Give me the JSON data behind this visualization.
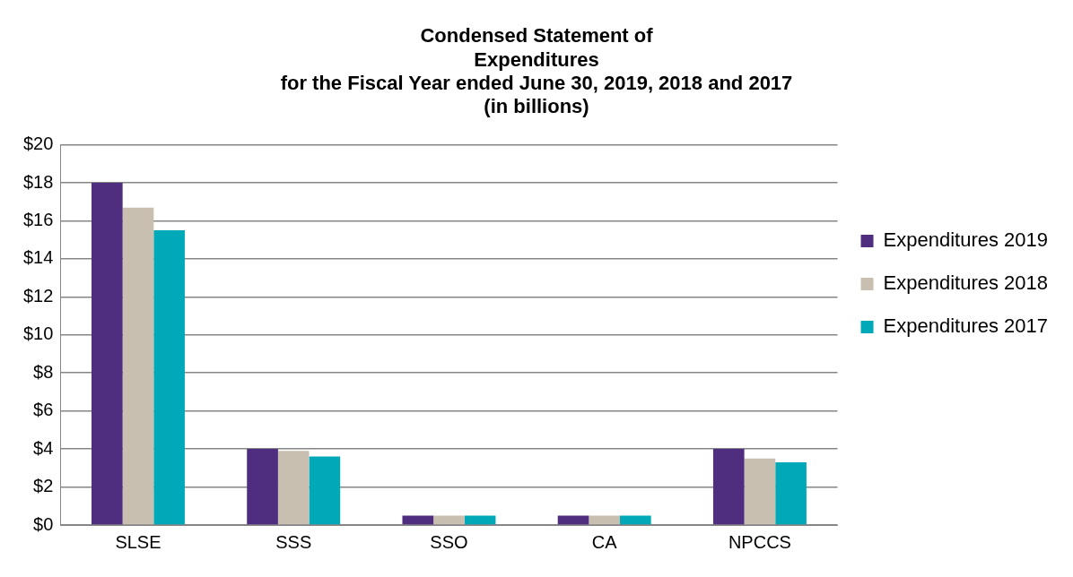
{
  "chart_data": {
    "type": "bar",
    "title": [
      "Condensed Statement of",
      "Expenditures",
      "for the Fiscal Year ended June 30, 2019, 2018 and 2017",
      "(in billions)"
    ],
    "categories": [
      "SLSE",
      "SSS",
      "SSO",
      "CA",
      "NPCCS"
    ],
    "series": [
      {
        "name": "Expenditures 2019",
        "color": "#4f2d7f",
        "values": [
          18,
          4,
          0.5,
          0.5,
          4
        ]
      },
      {
        "name": "Expenditures 2018",
        "color": "#c8bfb0",
        "values": [
          16.7,
          3.9,
          0.5,
          0.5,
          3.5
        ]
      },
      {
        "name": "Expenditures 2017",
        "color": "#00a9b7",
        "values": [
          15.5,
          3.6,
          0.5,
          0.5,
          3.3
        ]
      }
    ],
    "ylim": [
      0,
      20
    ],
    "yticks": [
      {
        "value": 0,
        "label": "$0"
      },
      {
        "value": 2,
        "label": "$2"
      },
      {
        "value": 4,
        "label": "$4"
      },
      {
        "value": 6,
        "label": "$6"
      },
      {
        "value": 8,
        "label": "$8"
      },
      {
        "value": 10,
        "label": "$10"
      },
      {
        "value": 12,
        "label": "$12"
      },
      {
        "value": 14,
        "label": "$14"
      },
      {
        "value": 16,
        "label": "$16"
      },
      {
        "value": 18,
        "label": "$18"
      },
      {
        "value": 20,
        "label": "$20"
      }
    ],
    "grid": "y",
    "legend": "right"
  }
}
